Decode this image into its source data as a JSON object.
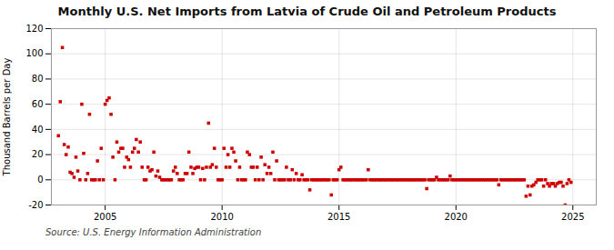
{
  "chart_data": {
    "type": "scatter",
    "title": "Monthly U.S. Net Imports from Latvia of Crude Oil and Petroleum Products",
    "ylabel": "Thousand Barrels per Day",
    "annotation": "Source: U.S. Energy Information Administration",
    "color": "#cc0000",
    "marker": "square",
    "grid": true,
    "xlim": [
      2002.7,
      2026.0
    ],
    "xticks": [
      2005,
      2010,
      2015,
      2020,
      2025
    ],
    "ylim": [
      -20,
      120
    ],
    "yticks": [
      -20,
      0,
      20,
      40,
      60,
      80,
      100,
      120
    ],
    "x": [
      2003.0,
      2003.08,
      2003.17,
      2003.25,
      2003.33,
      2003.42,
      2003.5,
      2003.58,
      2003.67,
      2003.75,
      2003.83,
      2003.92,
      2004.0,
      2004.08,
      2004.17,
      2004.25,
      2004.33,
      2004.42,
      2004.5,
      2004.58,
      2004.67,
      2004.75,
      2004.83,
      2004.92,
      2005.0,
      2005.08,
      2005.17,
      2005.25,
      2005.33,
      2005.42,
      2005.5,
      2005.58,
      2005.67,
      2005.75,
      2005.83,
      2005.92,
      2006.0,
      2006.08,
      2006.17,
      2006.25,
      2006.33,
      2006.42,
      2006.5,
      2006.58,
      2006.67,
      2006.75,
      2006.83,
      2006.92,
      2007.0,
      2007.08,
      2007.17,
      2007.25,
      2007.33,
      2007.42,
      2007.5,
      2007.58,
      2007.67,
      2007.75,
      2007.83,
      2007.92,
      2008.0,
      2008.08,
      2008.17,
      2008.25,
      2008.33,
      2008.42,
      2008.5,
      2008.58,
      2008.67,
      2008.75,
      2008.83,
      2008.92,
      2009.0,
      2009.08,
      2009.17,
      2009.25,
      2009.33,
      2009.42,
      2009.5,
      2009.58,
      2009.67,
      2009.75,
      2009.83,
      2009.92,
      2010.0,
      2010.08,
      2010.17,
      2010.25,
      2010.33,
      2010.42,
      2010.5,
      2010.58,
      2010.67,
      2010.75,
      2010.83,
      2010.92,
      2011.0,
      2011.08,
      2011.17,
      2011.25,
      2011.33,
      2011.42,
      2011.5,
      2011.58,
      2011.67,
      2011.75,
      2011.83,
      2011.92,
      2012.0,
      2012.08,
      2012.17,
      2012.25,
      2012.33,
      2012.42,
      2012.5,
      2012.58,
      2012.67,
      2012.75,
      2012.83,
      2012.92,
      2013.0,
      2013.08,
      2013.17,
      2013.25,
      2013.33,
      2013.42,
      2013.5,
      2013.58,
      2013.67,
      2013.75,
      2013.83,
      2013.92,
      2014.0,
      2014.08,
      2014.17,
      2014.25,
      2014.33,
      2014.42,
      2014.5,
      2014.58,
      2014.67,
      2014.75,
      2014.83,
      2014.92,
      2015.0,
      2015.08,
      2015.17,
      2015.25,
      2015.33,
      2015.42,
      2015.5,
      2015.58,
      2015.67,
      2015.75,
      2015.83,
      2015.92,
      2016.0,
      2016.08,
      2016.17,
      2016.25,
      2016.33,
      2016.42,
      2016.5,
      2016.58,
      2016.67,
      2016.75,
      2016.83,
      2016.92,
      2017.0,
      2017.08,
      2017.17,
      2017.25,
      2017.33,
      2017.42,
      2017.5,
      2017.58,
      2017.67,
      2017.75,
      2017.83,
      2017.92,
      2018.0,
      2018.08,
      2018.17,
      2018.25,
      2018.33,
      2018.42,
      2018.5,
      2018.58,
      2018.67,
      2018.75,
      2018.83,
      2018.92,
      2019.0,
      2019.08,
      2019.17,
      2019.25,
      2019.33,
      2019.42,
      2019.5,
      2019.58,
      2019.67,
      2019.75,
      2019.83,
      2019.92,
      2020.0,
      2020.08,
      2020.17,
      2020.25,
      2020.33,
      2020.42,
      2020.5,
      2020.58,
      2020.67,
      2020.75,
      2020.83,
      2020.92,
      2021.0,
      2021.08,
      2021.17,
      2021.25,
      2021.33,
      2021.42,
      2021.5,
      2021.58,
      2021.67,
      2021.75,
      2021.83,
      2021.92,
      2022.0,
      2022.08,
      2022.17,
      2022.25,
      2022.33,
      2022.42,
      2022.5,
      2022.58,
      2022.67,
      2022.75,
      2022.83,
      2022.92,
      2023.0,
      2023.08,
      2023.17,
      2023.25,
      2023.33,
      2023.42,
      2023.5,
      2023.58,
      2023.67,
      2023.75,
      2023.83,
      2023.92,
      2024.0,
      2024.08,
      2024.17,
      2024.25,
      2024.33,
      2024.42,
      2024.5,
      2024.58,
      2024.67,
      2024.75,
      2024.83,
      2024.92
    ],
    "values": [
      35,
      62,
      105,
      28,
      20,
      26,
      6,
      5,
      2,
      18,
      7,
      0,
      60,
      21,
      0,
      5,
      52,
      0,
      0,
      0,
      15,
      0,
      25,
      0,
      60,
      63,
      65,
      52,
      18,
      0,
      30,
      22,
      25,
      25,
      10,
      18,
      16,
      10,
      22,
      25,
      32,
      22,
      30,
      10,
      0,
      0,
      10,
      7,
      8,
      22,
      3,
      7,
      2,
      0,
      0,
      0,
      0,
      0,
      0,
      7,
      10,
      5,
      0,
      0,
      0,
      5,
      5,
      22,
      10,
      5,
      9,
      10,
      10,
      0,
      9,
      0,
      10,
      45,
      10,
      12,
      25,
      10,
      0,
      0,
      0,
      25,
      10,
      20,
      10,
      25,
      22,
      15,
      0,
      10,
      0,
      0,
      0,
      22,
      20,
      10,
      10,
      0,
      10,
      0,
      18,
      0,
      12,
      5,
      10,
      5,
      22,
      0,
      15,
      0,
      0,
      0,
      0,
      10,
      0,
      0,
      8,
      0,
      5,
      0,
      0,
      4,
      0,
      0,
      0,
      -8,
      0,
      0,
      0,
      0,
      0,
      0,
      0,
      0,
      0,
      0,
      -12,
      0,
      0,
      0,
      8,
      10,
      0,
      0,
      0,
      0,
      0,
      0,
      0,
      0,
      0,
      0,
      0,
      0,
      0,
      8,
      0,
      0,
      0,
      0,
      0,
      0,
      0,
      0,
      0,
      0,
      0,
      0,
      0,
      0,
      0,
      0,
      0,
      0,
      0,
      0,
      0,
      0,
      0,
      0,
      0,
      0,
      0,
      0,
      0,
      -7,
      0,
      0,
      0,
      0,
      2,
      0,
      0,
      0,
      0,
      0,
      0,
      3,
      0,
      0,
      0,
      0,
      0,
      0,
      0,
      0,
      0,
      0,
      0,
      0,
      0,
      0,
      0,
      0,
      0,
      0,
      0,
      0,
      0,
      0,
      0,
      0,
      -4,
      0,
      0,
      0,
      0,
      0,
      0,
      0,
      0,
      0,
      0,
      0,
      0,
      0,
      -13,
      -5,
      -12,
      -5,
      -4,
      -2,
      0,
      0,
      0,
      -5,
      0,
      -3,
      -5,
      -3,
      -3,
      -5,
      -3,
      -2,
      -2,
      -5,
      -20,
      -3,
      0,
      -2
    ]
  }
}
